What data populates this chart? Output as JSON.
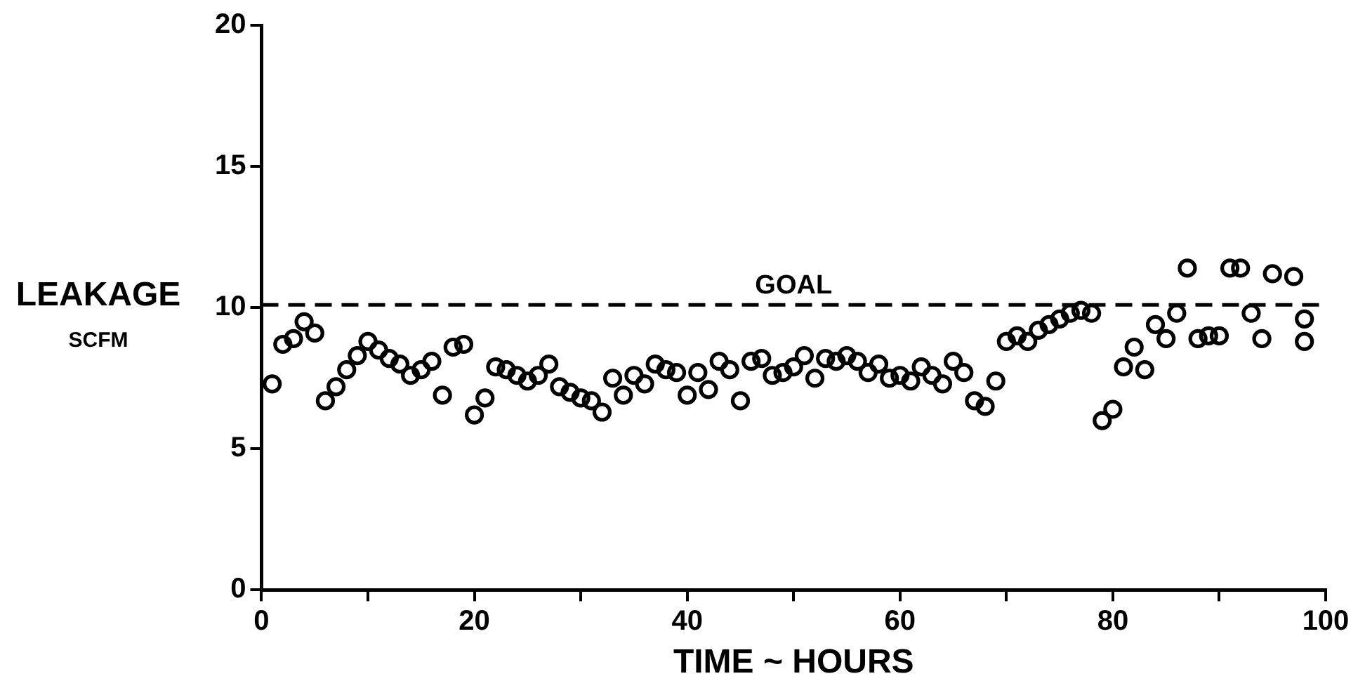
{
  "chart_data": {
    "type": "scatter",
    "xlabel": "TIME ~ HOURS",
    "ylabel": "LEAKAGE\nSCFM",
    "xlim": [
      0,
      100
    ],
    "xticks": [
      0,
      {
        "value": 10,
        "label": null
      },
      20,
      {
        "value": 30,
        "label": null
      },
      40,
      {
        "value": 50,
        "label": null
      },
      60,
      {
        "value": 70,
        "label": null
      },
      80,
      {
        "value": 90,
        "label": null
      },
      100
    ],
    "ylim": [
      0,
      20
    ],
    "yticks": [
      0,
      5,
      10,
      15,
      20
    ],
    "grid": false,
    "legend": false,
    "marker": "circle",
    "ref_lines": [
      {
        "axis": "y",
        "value": 10.1,
        "label": "GOAL",
        "color": "#000000",
        "line_style": "dashed"
      }
    ],
    "series": [
      {
        "color": "#000000",
        "x": [
          1,
          2,
          3,
          4,
          5,
          6,
          7,
          8,
          9,
          10,
          11,
          12,
          13,
          14,
          15,
          16,
          17,
          18,
          19,
          20,
          21,
          22,
          23,
          24,
          25,
          26,
          27,
          28,
          29,
          30,
          31,
          32,
          33,
          34,
          35,
          36,
          37,
          38,
          39,
          40,
          41,
          42,
          43,
          44,
          45,
          46,
          47,
          48,
          49,
          50,
          51,
          52,
          53,
          54,
          55,
          56,
          57,
          58,
          59,
          60,
          61,
          62,
          63,
          64,
          65,
          66,
          67,
          68,
          69,
          70,
          71,
          72,
          73,
          74,
          75,
          76,
          77,
          78,
          79,
          80,
          81,
          82,
          83,
          84,
          85,
          86,
          87,
          88,
          89,
          90,
          91,
          92,
          93,
          94,
          95,
          97,
          98,
          98
        ],
        "values": [
          7.3,
          8.7,
          8.9,
          9.5,
          9.1,
          6.7,
          7.2,
          7.8,
          8.3,
          8.8,
          8.5,
          8.2,
          8.0,
          7.6,
          7.8,
          8.1,
          6.9,
          8.6,
          8.7,
          6.2,
          6.8,
          7.9,
          7.8,
          7.6,
          7.4,
          7.6,
          8.0,
          7.2,
          7.0,
          6.8,
          6.7,
          6.3,
          7.5,
          6.9,
          7.6,
          7.3,
          8.0,
          7.8,
          7.7,
          6.9,
          7.7,
          7.1,
          8.1,
          7.8,
          6.7,
          8.1,
          8.2,
          7.6,
          7.7,
          7.9,
          8.3,
          7.5,
          8.2,
          8.1,
          8.3,
          8.1,
          7.7,
          8.0,
          7.5,
          7.6,
          7.4,
          7.9,
          7.6,
          7.3,
          8.1,
          7.7,
          6.7,
          6.5,
          7.4,
          8.8,
          9.0,
          8.8,
          9.2,
          9.4,
          9.6,
          9.8,
          9.9,
          9.8,
          6.0,
          6.4,
          7.9,
          8.6,
          7.8,
          9.4,
          8.9,
          9.8,
          11.4,
          8.9,
          9.0,
          9.0,
          11.4,
          11.4,
          9.8,
          8.9,
          11.2,
          11.1,
          9.6,
          8.8
        ]
      }
    ]
  }
}
